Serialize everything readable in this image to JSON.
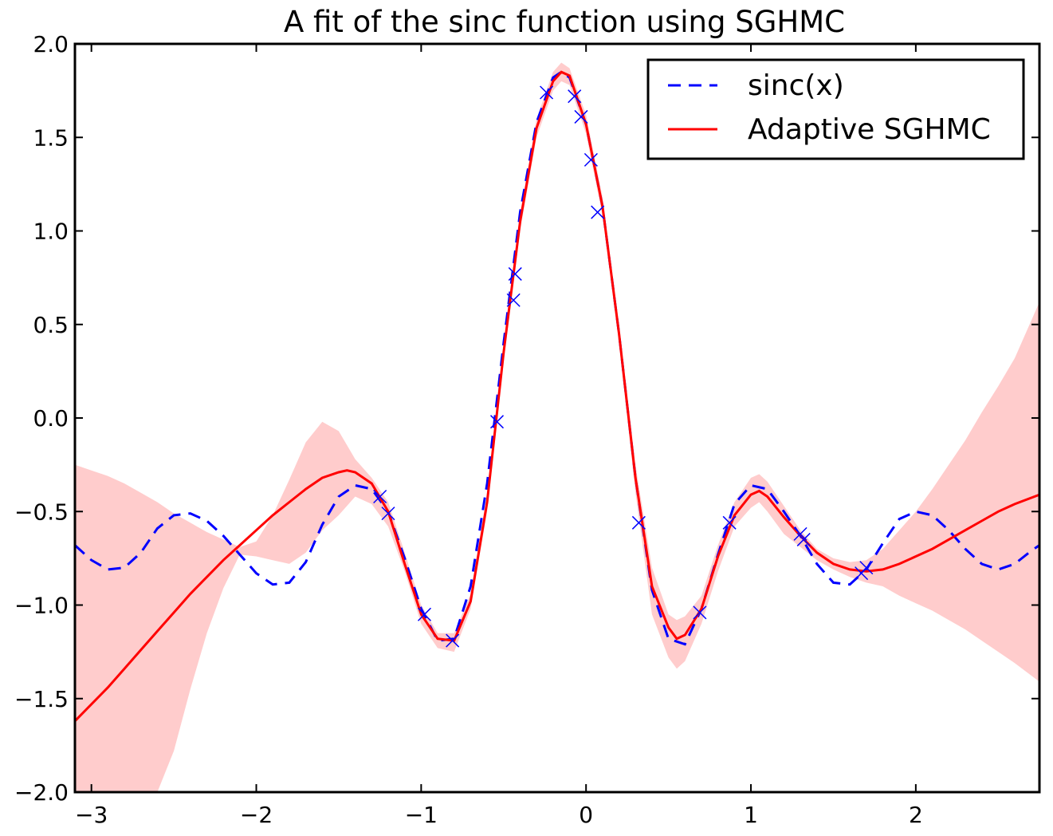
{
  "chart_data": {
    "type": "line",
    "title": "A fit of the sinc function using SGHMC",
    "xlabel": "",
    "ylabel": "",
    "xlim": [
      -3.1,
      2.75
    ],
    "ylim": [
      -2.0,
      2.0
    ],
    "xticks": [
      {
        "v": -3,
        "label": "−3"
      },
      {
        "v": -2,
        "label": "−2"
      },
      {
        "v": -1,
        "label": "−1"
      },
      {
        "v": 0,
        "label": "0"
      },
      {
        "v": 1,
        "label": "1"
      },
      {
        "v": 2,
        "label": "2"
      }
    ],
    "yticks": [
      {
        "v": -2.0,
        "label": "−2.0"
      },
      {
        "v": -1.5,
        "label": "−1.5"
      },
      {
        "v": -1.0,
        "label": "−1.0"
      },
      {
        "v": -0.5,
        "label": "−0.5"
      },
      {
        "v": 0.0,
        "label": "0.0"
      },
      {
        "v": 0.5,
        "label": "0.5"
      },
      {
        "v": 1.0,
        "label": "1.0"
      },
      {
        "v": 1.5,
        "label": "1.5"
      },
      {
        "v": 2.0,
        "label": "2.0"
      }
    ],
    "grid": false,
    "legend_position": "top-right",
    "colors": {
      "sinc": "#0000ff",
      "fit": "#ff0000",
      "band": "#ffcccc",
      "markers": "#0000ff"
    },
    "series": [
      {
        "name": "sinc(x)",
        "style": "dashed",
        "x": [
          -3.1,
          -3.0,
          -2.9,
          -2.8,
          -2.7,
          -2.6,
          -2.5,
          -2.4,
          -2.3,
          -2.2,
          -2.1,
          -2.0,
          -1.9,
          -1.8,
          -1.7,
          -1.6,
          -1.5,
          -1.4,
          -1.3,
          -1.2,
          -1.1,
          -1.0,
          -0.9,
          -0.8,
          -0.7,
          -0.6,
          -0.5,
          -0.4,
          -0.3,
          -0.2,
          -0.15,
          -0.1,
          0.0,
          0.1,
          0.2,
          0.3,
          0.4,
          0.5,
          0.6,
          0.7,
          0.8,
          0.9,
          1.0,
          1.1,
          1.2,
          1.3,
          1.4,
          1.5,
          1.6,
          1.7,
          1.8,
          1.9,
          2.0,
          2.1,
          2.2,
          2.3,
          2.4,
          2.5,
          2.6,
          2.7,
          2.75
        ],
        "y": [
          -0.68,
          -0.76,
          -0.81,
          -0.8,
          -0.72,
          -0.59,
          -0.52,
          -0.51,
          -0.55,
          -0.63,
          -0.73,
          -0.83,
          -0.89,
          -0.88,
          -0.77,
          -0.57,
          -0.42,
          -0.36,
          -0.38,
          -0.5,
          -0.75,
          -1.02,
          -1.19,
          -1.18,
          -0.9,
          -0.35,
          0.4,
          1.1,
          1.58,
          1.82,
          1.85,
          1.82,
          1.57,
          1.13,
          0.45,
          -0.32,
          -0.92,
          -1.18,
          -1.21,
          -1.02,
          -0.73,
          -0.46,
          -0.36,
          -0.38,
          -0.5,
          -0.63,
          -0.78,
          -0.88,
          -0.89,
          -0.81,
          -0.67,
          -0.54,
          -0.5,
          -0.52,
          -0.6,
          -0.7,
          -0.78,
          -0.81,
          -0.78,
          -0.71,
          -0.68
        ]
      },
      {
        "name": "Adaptive SGHMC",
        "style": "solid",
        "x": [
          -3.1,
          -3.0,
          -2.9,
          -2.8,
          -2.7,
          -2.6,
          -2.5,
          -2.4,
          -2.3,
          -2.2,
          -2.1,
          -2.0,
          -1.9,
          -1.8,
          -1.7,
          -1.6,
          -1.5,
          -1.45,
          -1.4,
          -1.3,
          -1.2,
          -1.1,
          -1.0,
          -0.9,
          -0.8,
          -0.7,
          -0.6,
          -0.5,
          -0.4,
          -0.3,
          -0.2,
          -0.15,
          -0.1,
          0.0,
          0.1,
          0.2,
          0.3,
          0.4,
          0.5,
          0.55,
          0.6,
          0.7,
          0.8,
          0.9,
          1.0,
          1.05,
          1.1,
          1.2,
          1.3,
          1.4,
          1.5,
          1.6,
          1.7,
          1.8,
          1.9,
          2.0,
          2.1,
          2.2,
          2.3,
          2.4,
          2.5,
          2.6,
          2.75
        ],
        "y": [
          -1.62,
          -1.53,
          -1.44,
          -1.34,
          -1.24,
          -1.14,
          -1.04,
          -0.94,
          -0.85,
          -0.76,
          -0.68,
          -0.6,
          -0.52,
          -0.45,
          -0.38,
          -0.32,
          -0.29,
          -0.28,
          -0.29,
          -0.35,
          -0.5,
          -0.78,
          -1.05,
          -1.18,
          -1.19,
          -0.98,
          -0.45,
          0.35,
          1.05,
          1.55,
          1.8,
          1.85,
          1.83,
          1.57,
          1.13,
          0.45,
          -0.32,
          -0.9,
          -1.12,
          -1.18,
          -1.16,
          -1.02,
          -0.74,
          -0.52,
          -0.41,
          -0.39,
          -0.42,
          -0.53,
          -0.63,
          -0.72,
          -0.78,
          -0.81,
          -0.82,
          -0.81,
          -0.78,
          -0.74,
          -0.7,
          -0.65,
          -0.6,
          -0.55,
          -0.5,
          -0.46,
          -0.41
        ]
      }
    ],
    "band": {
      "x": [
        -3.1,
        -3.0,
        -2.9,
        -2.8,
        -2.7,
        -2.6,
        -2.5,
        -2.4,
        -2.3,
        -2.2,
        -2.1,
        -2.0,
        -1.9,
        -1.8,
        -1.7,
        -1.6,
        -1.5,
        -1.4,
        -1.3,
        -1.2,
        -1.1,
        -1.0,
        -0.9,
        -0.8,
        -0.7,
        -0.6,
        -0.5,
        -0.4,
        -0.3,
        -0.2,
        -0.15,
        -0.1,
        0.0,
        0.1,
        0.2,
        0.3,
        0.4,
        0.5,
        0.55,
        0.6,
        0.7,
        0.8,
        0.9,
        1.0,
        1.05,
        1.1,
        1.2,
        1.3,
        1.4,
        1.5,
        1.6,
        1.7,
        1.8,
        1.9,
        2.0,
        2.1,
        2.2,
        2.3,
        2.4,
        2.5,
        2.6,
        2.75
      ],
      "upper": [
        -0.25,
        -0.28,
        -0.31,
        -0.35,
        -0.4,
        -0.45,
        -0.51,
        -0.56,
        -0.61,
        -0.65,
        -0.69,
        -0.66,
        -0.52,
        -0.33,
        -0.13,
        -0.02,
        -0.07,
        -0.22,
        -0.32,
        -0.45,
        -0.72,
        -1.0,
        -1.15,
        -1.15,
        -0.94,
        -0.4,
        0.4,
        1.1,
        1.6,
        1.85,
        1.9,
        1.87,
        1.62,
        1.18,
        0.5,
        -0.25,
        -0.8,
        -1.05,
        -1.08,
        -1.06,
        -0.95,
        -0.68,
        -0.45,
        -0.32,
        -0.3,
        -0.34,
        -0.47,
        -0.6,
        -0.7,
        -0.75,
        -0.77,
        -0.76,
        -0.7,
        -0.6,
        -0.5,
        -0.38,
        -0.25,
        -0.12,
        0.03,
        0.17,
        0.32,
        0.62
      ],
      "lower": [
        -2.0,
        -2.0,
        -2.0,
        -2.0,
        -2.0,
        -2.0,
        -1.78,
        -1.45,
        -1.15,
        -0.91,
        -0.73,
        -0.74,
        -0.76,
        -0.78,
        -0.72,
        -0.6,
        -0.52,
        -0.42,
        -0.46,
        -0.58,
        -0.82,
        -1.1,
        -1.23,
        -1.25,
        -1.02,
        -0.5,
        0.3,
        1.0,
        1.5,
        1.75,
        1.8,
        1.78,
        1.52,
        1.08,
        0.4,
        -0.4,
        -1.05,
        -1.28,
        -1.34,
        -1.3,
        -1.1,
        -0.82,
        -0.58,
        -0.48,
        -0.45,
        -0.5,
        -0.62,
        -0.69,
        -0.76,
        -0.81,
        -0.85,
        -0.88,
        -0.9,
        -0.95,
        -0.99,
        -1.03,
        -1.08,
        -1.13,
        -1.19,
        -1.25,
        -1.31,
        -1.41
      ]
    },
    "observations": {
      "marker": "x",
      "points": [
        {
          "x": -1.25,
          "y": -0.42
        },
        {
          "x": -1.2,
          "y": -0.51
        },
        {
          "x": -0.98,
          "y": -1.05
        },
        {
          "x": -0.81,
          "y": -1.19
        },
        {
          "x": -0.54,
          "y": -0.02
        },
        {
          "x": -0.44,
          "y": 0.63
        },
        {
          "x": -0.43,
          "y": 0.77
        },
        {
          "x": -0.24,
          "y": 1.74
        },
        {
          "x": -0.07,
          "y": 1.72
        },
        {
          "x": -0.03,
          "y": 1.61
        },
        {
          "x": 0.03,
          "y": 1.38
        },
        {
          "x": 0.07,
          "y": 1.1
        },
        {
          "x": 0.32,
          "y": -0.56
        },
        {
          "x": 0.69,
          "y": -1.04
        },
        {
          "x": 0.87,
          "y": -0.56
        },
        {
          "x": 1.3,
          "y": -0.62
        },
        {
          "x": 1.32,
          "y": -0.65
        },
        {
          "x": 1.67,
          "y": -0.83
        },
        {
          "x": 1.7,
          "y": -0.8
        }
      ]
    }
  }
}
